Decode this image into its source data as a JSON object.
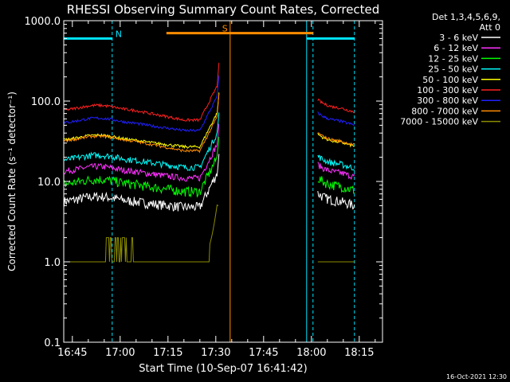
{
  "chart_data": {
    "type": "line",
    "title": "RHESSI Observing Summary Count Rates, Corrected",
    "xlabel": "Start Time (10-Sep-07 16:41:42)",
    "ylabel": "Corrected Count Rate (s⁻¹ detector⁻¹)",
    "yscale": "log",
    "ylim": [
      0.1,
      1000
    ],
    "xlim_minutes": [
      -2.7,
      97.3
    ],
    "y_ticks": [
      "0.1",
      "1.0",
      "10.0",
      "100.0",
      "1000.0"
    ],
    "x_ticks": [
      {
        "label": "16:45",
        "t": 0
      },
      {
        "label": "17:00",
        "t": 15
      },
      {
        "label": "17:15",
        "t": 30
      },
      {
        "label": "17:30",
        "t": 45
      },
      {
        "label": "17:45",
        "t": 60
      },
      {
        "label": "18:00",
        "t": 75
      },
      {
        "label": "18:15",
        "t": 90
      }
    ],
    "legend_header": [
      "Det 1,3,4,5,6,9,",
      "Att 0"
    ],
    "legend_position": "top-right",
    "series": [
      {
        "name": "3 - 6 keV",
        "color": "#ffffff",
        "level_a": 5.5,
        "level_b": 4.8,
        "level_c": 5.5
      },
      {
        "name": "6 - 12 keV",
        "color": "#ff30ff",
        "level_a": 13,
        "level_b": 11,
        "level_c": 12.5
      },
      {
        "name": "12 - 25 keV",
        "color": "#00ff00",
        "level_a": 9,
        "level_b": 7.5,
        "level_c": 8.5
      },
      {
        "name": "25 - 50 keV",
        "color": "#00ffff",
        "level_a": 18,
        "level_b": 15,
        "level_c": 16
      },
      {
        "name": "50 - 100 keV",
        "color": "#ffff00",
        "level_a": 32,
        "level_b": 27,
        "level_c": 30
      },
      {
        "name": "100 - 300 keV",
        "color": "#ff2020",
        "level_a": 75,
        "level_b": 58,
        "level_c": 80
      },
      {
        "name": "300 - 800 keV",
        "color": "#2020ff",
        "level_a": 52,
        "level_b": 43,
        "level_c": 55
      },
      {
        "name": "800 - 7000 keV",
        "color": "#ff8c00",
        "level_a": 31,
        "level_b": 24,
        "level_c": 31
      },
      {
        "name": "7000 - 15000 keV",
        "color": "#8b8b00",
        "level_a": 1.0,
        "level_b": 1.0,
        "level_c": 1.0
      }
    ],
    "segments": [
      {
        "label": "N",
        "color": "#00e5ff",
        "t_start": -2.7,
        "t_end": 12.5,
        "y": 600
      },
      {
        "label": "S",
        "color": "#ff8c00",
        "t_start": 29.5,
        "t_end": 75.5,
        "y": 700
      },
      {
        "label": "",
        "color": "#00e5ff",
        "t_start": 73.5,
        "t_end": 88.5,
        "y": 600
      }
    ]
  },
  "footer": {
    "date": "16-Oct-2021 12:30"
  }
}
